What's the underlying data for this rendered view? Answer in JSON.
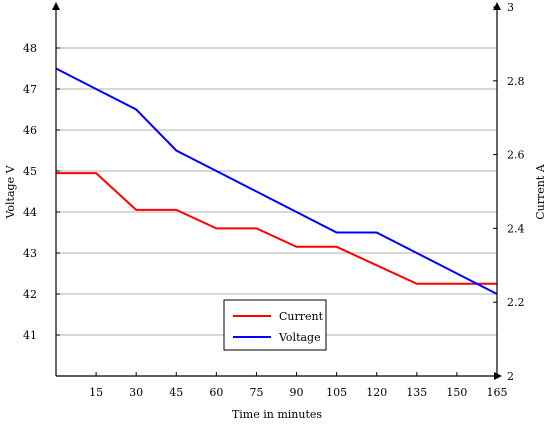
{
  "chart_data": {
    "type": "line",
    "xlabel": "Time in minutes",
    "ylabel_left": "Voltage V",
    "ylabel_right": "Current A",
    "x_ticks": [
      15,
      30,
      45,
      60,
      75,
      90,
      105,
      120,
      135,
      150,
      165
    ],
    "x_tick_labels": [
      "15",
      "30",
      "45",
      "60",
      "75",
      "90",
      "105",
      "120",
      "135",
      "150",
      "165"
    ],
    "xlim": [
      0,
      165
    ],
    "y_left_ticks": [
      41,
      42,
      43,
      44,
      45,
      46,
      47,
      48
    ],
    "y_left_tick_labels": [
      "41",
      "42",
      "43",
      "44",
      "45",
      "46",
      "47",
      "48"
    ],
    "ylim_left": [
      40,
      49
    ],
    "y_right_ticks": [
      2,
      2.2,
      2.4,
      2.6,
      2.8,
      3
    ],
    "y_right_tick_labels": [
      "2",
      "2.2",
      "2.4",
      "2.6",
      "2.8",
      "3"
    ],
    "ylim_right": [
      2,
      3
    ],
    "grid": "horizontal",
    "legend_position": "bottom-center",
    "series": [
      {
        "name": "Current",
        "axis": "right",
        "color": "#ff0000",
        "points": [
          [
            0,
            2.55
          ],
          [
            15,
            2.55
          ],
          [
            30,
            2.45
          ],
          [
            45,
            2.45
          ],
          [
            60,
            2.4
          ],
          [
            75,
            2.4
          ],
          [
            90,
            2.35
          ],
          [
            105,
            2.35
          ],
          [
            120,
            2.3
          ],
          [
            135,
            2.25
          ],
          [
            150,
            2.25
          ],
          [
            165,
            2.25
          ]
        ]
      },
      {
        "name": "Voltage",
        "axis": "left",
        "color": "#0000ff",
        "points": [
          [
            0,
            47.5
          ],
          [
            15,
            47.0
          ],
          [
            30,
            46.5
          ],
          [
            45,
            45.5
          ],
          [
            60,
            45.0
          ],
          [
            75,
            44.5
          ],
          [
            90,
            44.0
          ],
          [
            105,
            43.5
          ],
          [
            120,
            43.5
          ],
          [
            135,
            43.0
          ],
          [
            150,
            42.5
          ],
          [
            165,
            42.0
          ]
        ]
      }
    ]
  }
}
